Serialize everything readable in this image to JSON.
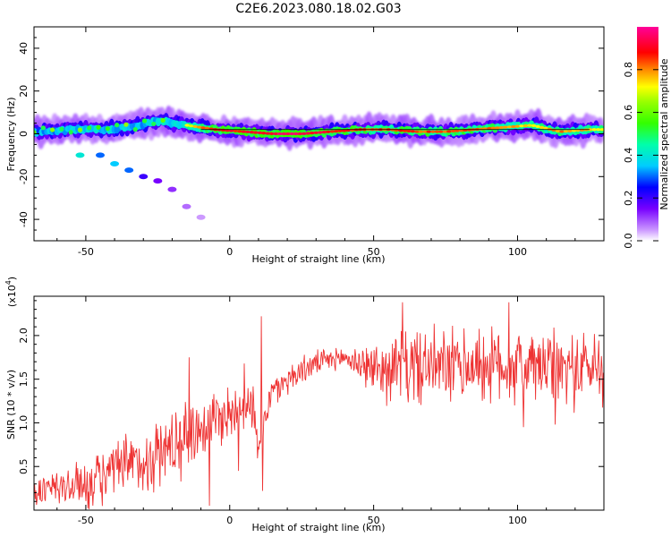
{
  "chart_data": [
    {
      "type": "heatmap",
      "title": "C2E6.2023.080.18.02.G03",
      "xlabel": "Height of straight line (km)",
      "ylabel": "Frequency (Hz)",
      "xlim": [
        -68,
        130
      ],
      "ylim": [
        -50,
        50
      ],
      "x_ticks": [
        -50,
        0,
        50,
        100
      ],
      "y_ticks": [
        -40,
        -20,
        0,
        20,
        40
      ],
      "colorbar": {
        "label": "Normalized spectral amplitude",
        "range": [
          0,
          1
        ],
        "ticks": [
          "0.0",
          "0.2",
          "0.4",
          "0.6",
          "0.8"
        ],
        "colors": [
          "#ffffff",
          "#cc99ff",
          "#7700ff",
          "#0000ff",
          "#00ccff",
          "#00ff66",
          "#66ff00",
          "#ffff00",
          "#ff8800",
          "#ff0000",
          "#ff0088"
        ]
      },
      "ridge": {
        "description_x": [
          -65,
          -55,
          -45,
          -35,
          -25,
          -15,
          -5,
          5,
          15,
          25,
          35,
          45,
          55,
          65,
          75,
          85,
          95,
          105,
          115,
          125
        ],
        "center_freq": [
          1,
          2,
          2,
          3,
          6,
          4,
          2,
          1,
          0,
          0,
          1,
          2,
          2,
          1,
          1,
          2,
          3,
          4,
          1,
          2
        ],
        "amplitude": [
          0.5,
          0.55,
          0.6,
          0.55,
          0.55,
          0.65,
          0.85,
          0.85,
          0.9,
          0.9,
          0.85,
          0.8,
          0.8,
          0.8,
          0.8,
          0.8,
          0.75,
          0.7,
          0.75,
          0.7
        ]
      },
      "secondary_track": {
        "x": [
          -52,
          -45,
          -40,
          -35,
          -30,
          -25,
          -20,
          -15,
          -10
        ],
        "freq": [
          -10,
          -10,
          -14,
          -17,
          -20,
          -22,
          -26,
          -34,
          -39
        ],
        "amplitude": [
          0.4,
          0.3,
          0.35,
          0.3,
          0.2,
          0.15,
          0.12,
          0.08,
          0.05
        ]
      },
      "separator_line": {
        "x": [
          -10,
          125
        ],
        "freq": 2
      }
    },
    {
      "type": "line",
      "title": "",
      "xlabel": "Height of straight line (km)",
      "ylabel": "SNR (10 * v/v)",
      "scale_label": "(x10",
      "scale_exp": "4",
      "scale_close": ")",
      "xlim": [
        -68,
        130
      ],
      "ylim": [
        0,
        2.45
      ],
      "x_ticks": [
        -50,
        0,
        50,
        100
      ],
      "y_ticks": [
        "0.5",
        "1.0",
        "1.5",
        "2.0"
      ],
      "series": [
        {
          "color": "#ee3333",
          "trend_x": [
            -68,
            -60,
            -50,
            -45,
            -40,
            -35,
            -30,
            -25,
            -20,
            -15,
            -10,
            -5,
            0,
            5,
            8,
            10,
            12,
            15,
            20,
            25,
            30,
            35,
            40,
            45,
            50,
            55,
            60,
            65,
            70,
            75,
            80,
            85,
            90,
            95,
            100,
            105,
            110,
            115,
            120,
            125,
            130
          ],
          "trend_y": [
            0.2,
            0.25,
            0.3,
            0.35,
            0.45,
            0.5,
            0.55,
            0.65,
            0.75,
            0.85,
            0.95,
            1.05,
            1.1,
            1.25,
            1.2,
            0.6,
            1.1,
            1.35,
            1.5,
            1.6,
            1.68,
            1.72,
            1.75,
            1.68,
            1.62,
            1.62,
            1.64,
            1.65,
            1.64,
            1.63,
            1.65,
            1.66,
            1.66,
            1.65,
            1.64,
            1.64,
            1.63,
            1.62,
            1.62,
            1.64,
            1.64
          ],
          "noise_x": [
            -68,
            -40,
            -20,
            0,
            15,
            38,
            60,
            90,
            130
          ],
          "noise_amp": [
            0.2,
            0.35,
            0.45,
            0.35,
            0.2,
            0.12,
            0.45,
            0.45,
            0.45
          ],
          "spikes": [
            {
              "x": 11,
              "y": 2.22
            },
            {
              "x": 11.5,
              "y": 0.22
            },
            {
              "x": -14,
              "y": 1.75
            },
            {
              "x": -7,
              "y": 0.05
            },
            {
              "x": 5,
              "y": 1.68
            },
            {
              "x": 3,
              "y": 0.45
            },
            {
              "x": 60,
              "y": 2.38
            },
            {
              "x": 97,
              "y": 2.38
            },
            {
              "x": 102,
              "y": 0.95
            },
            {
              "x": 113,
              "y": 0.98
            }
          ]
        }
      ]
    }
  ]
}
